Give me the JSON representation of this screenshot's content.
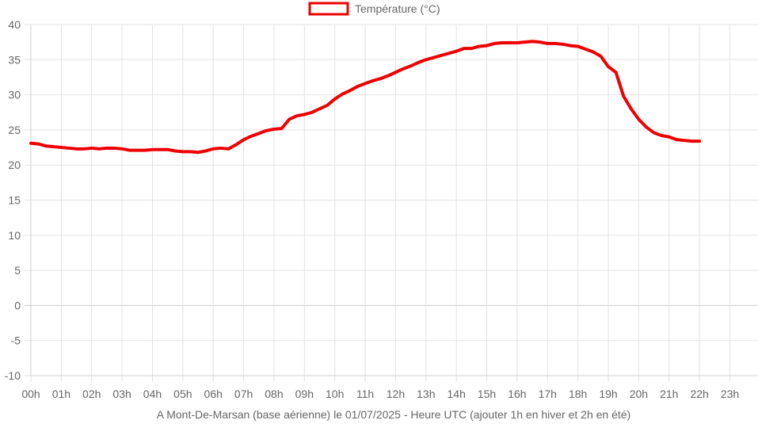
{
  "chart_data": {
    "type": "line",
    "title": "",
    "xlabel": "A Mont-De-Marsan (base aérienne) le 01/07/2025 - Heure UTC (ajouter 1h en hiver et 2h en été)",
    "ylabel": "",
    "categories": [
      "00h",
      "01h",
      "02h",
      "03h",
      "04h",
      "05h",
      "06h",
      "07h",
      "08h",
      "09h",
      "10h",
      "11h",
      "12h",
      "13h",
      "14h",
      "15h",
      "16h",
      "17h",
      "18h",
      "19h",
      "20h",
      "21h",
      "22h",
      "23h"
    ],
    "yticks": [
      "40",
      "35",
      "30",
      "25",
      "20",
      "15",
      "10",
      "5",
      "0",
      "-5",
      "-10"
    ],
    "ylim": [
      -10,
      40
    ],
    "xlim": [
      0,
      23
    ],
    "grid": true,
    "legend_position": "top",
    "series": [
      {
        "name": "Température (°C)",
        "color": "#ee0000",
        "x": [
          0,
          0.25,
          0.5,
          0.75,
          1,
          1.25,
          1.5,
          1.75,
          2,
          2.25,
          2.5,
          2.75,
          3,
          3.25,
          3.5,
          3.75,
          4,
          4.25,
          4.5,
          4.75,
          5,
          5.25,
          5.5,
          5.75,
          6,
          6.25,
          6.5,
          6.75,
          7,
          7.25,
          7.5,
          7.75,
          8,
          8.25,
          8.5,
          8.75,
          9,
          9.25,
          9.5,
          9.75,
          10,
          10.25,
          10.5,
          10.75,
          11,
          11.25,
          11.5,
          11.75,
          12,
          12.25,
          12.5,
          12.75,
          13,
          13.25,
          13.5,
          13.75,
          14,
          14.25,
          14.5,
          14.75,
          15,
          15.25,
          15.5,
          15.75,
          16,
          16.25,
          16.5,
          16.75,
          17,
          17.25,
          17.5,
          17.75,
          18,
          18.25,
          18.5,
          18.75,
          19,
          19.25,
          19.5,
          19.75,
          20,
          20.25,
          20.5,
          20.75,
          21,
          21.25,
          21.5,
          21.75,
          22
        ],
        "values": [
          23.1,
          23.0,
          22.7,
          22.6,
          22.5,
          22.4,
          22.3,
          22.3,
          22.4,
          22.3,
          22.4,
          22.4,
          22.3,
          22.1,
          22.1,
          22.1,
          22.2,
          22.2,
          22.2,
          22.0,
          21.9,
          21.9,
          21.8,
          22.0,
          22.3,
          22.4,
          22.3,
          22.9,
          23.6,
          24.1,
          24.5,
          24.9,
          25.1,
          25.2,
          26.5,
          27.0,
          27.2,
          27.5,
          28.0,
          28.5,
          29.4,
          30.1,
          30.6,
          31.2,
          31.6,
          32.0,
          32.3,
          32.7,
          33.2,
          33.7,
          34.1,
          34.6,
          35.0,
          35.3,
          35.6,
          35.9,
          36.2,
          36.6,
          36.6,
          36.9,
          37.0,
          37.3,
          37.4,
          37.4,
          37.4,
          37.5,
          37.6,
          37.5,
          37.3,
          37.3,
          37.2,
          37.0,
          36.9,
          36.5,
          36.1,
          35.5,
          34.0,
          33.2,
          29.8,
          28.0,
          26.5,
          25.4,
          24.6,
          24.2,
          24.0,
          23.6,
          23.5,
          23.4,
          23.4
        ]
      }
    ]
  }
}
